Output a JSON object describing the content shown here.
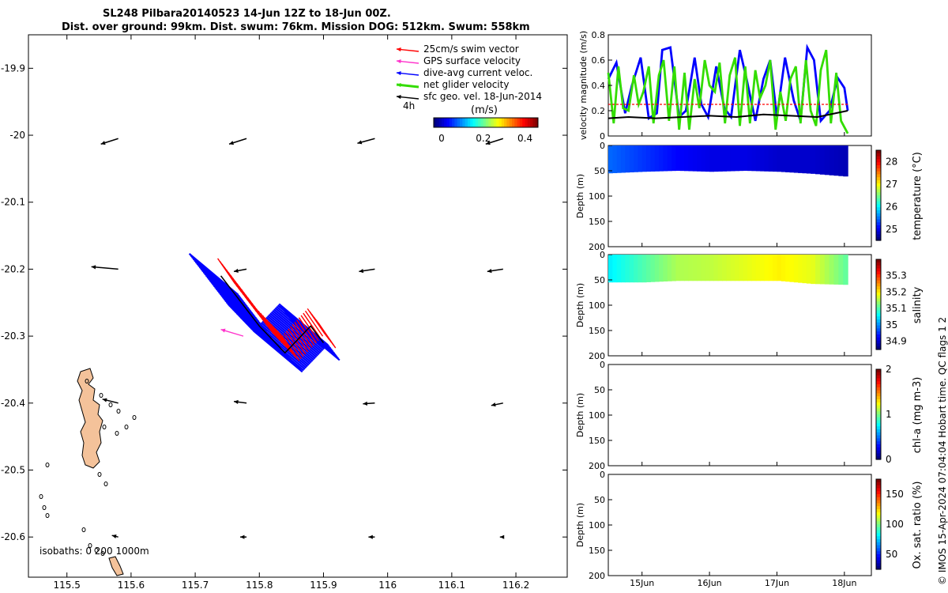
{
  "title": {
    "line1": "SL248 Pilbara20140523 14-Jun 12Z to 18-Jun 00Z.",
    "line2": "Dist. over ground: 99km. Dist. swum: 76km. Mission DOG: 512km. Swum: 558km"
  },
  "credit": "© IMOS 15-Apr-2024 07:04:04 Hobart time. QC flags 1  2",
  "colors": {
    "swim": "#ff0000",
    "gps": "#ff33cc",
    "dive_avg": "#0000ff",
    "net": "#33dd00",
    "sfc": "#000000",
    "land": "#f4c29a"
  },
  "chart_data": [
    {
      "type": "map",
      "xlim": [
        115.44,
        116.28
      ],
      "ylim": [
        -20.66,
        -19.85
      ],
      "xticks": [
        "115.5",
        "115.6",
        "115.7",
        "115.8",
        "115.9",
        "116",
        "116.1",
        "116.2"
      ],
      "yticks": [
        "-19.9",
        "-20",
        "-20.1",
        "-20.2",
        "-20.3",
        "-20.4",
        "-20.5",
        "-20.6"
      ],
      "legend": {
        "placement": "top-right",
        "items": [
          {
            "label": "25cm/s swim vector",
            "color": "#ff0000"
          },
          {
            "label": "GPS surface velocity",
            "color": "#ff33cc"
          },
          {
            "label": "dive-avg current veloc.",
            "color": "#0000ff"
          },
          {
            "label": "net glider velocity",
            "color": "#33dd00"
          },
          {
            "label": "sfc geo. vel. 18-Jun-2014",
            "color": "#000000"
          }
        ]
      },
      "time_label": "4h",
      "colorbar": {
        "label": "(m/s)",
        "ticks": [
          "0",
          "0.2",
          "0.4"
        ],
        "range": [
          0,
          0.5
        ]
      },
      "isobath_label": "isobaths: 0   200   1000m",
      "surface_vectors": [
        {
          "lon": 115.58,
          "lat": -20.005,
          "u": -0.22,
          "v": -0.07
        },
        {
          "lon": 115.78,
          "lat": -20.005,
          "u": -0.22,
          "v": -0.07
        },
        {
          "lon": 115.98,
          "lat": -20.005,
          "u": -0.22,
          "v": -0.06
        },
        {
          "lon": 116.18,
          "lat": -20.005,
          "u": -0.22,
          "v": -0.07
        },
        {
          "lon": 115.58,
          "lat": -20.2,
          "u": -0.34,
          "v": 0.03
        },
        {
          "lon": 115.78,
          "lat": -20.2,
          "u": -0.16,
          "v": -0.03
        },
        {
          "lon": 115.98,
          "lat": -20.2,
          "u": -0.2,
          "v": -0.03
        },
        {
          "lon": 116.18,
          "lat": -20.2,
          "u": -0.2,
          "v": -0.03
        },
        {
          "lon": 115.58,
          "lat": -20.4,
          "u": -0.2,
          "v": 0.05
        },
        {
          "lon": 115.78,
          "lat": -20.4,
          "u": -0.16,
          "v": 0.02
        },
        {
          "lon": 115.98,
          "lat": -20.4,
          "u": -0.15,
          "v": -0.01
        },
        {
          "lon": 116.18,
          "lat": -20.4,
          "u": -0.15,
          "v": -0.03
        },
        {
          "lon": 115.58,
          "lat": -20.6,
          "u": -0.08,
          "v": 0.02
        },
        {
          "lon": 115.78,
          "lat": -20.6,
          "u": -0.08,
          "v": 0.0
        },
        {
          "lon": 115.98,
          "lat": -20.6,
          "u": -0.08,
          "v": 0.0
        },
        {
          "lon": 116.18,
          "lat": -20.6,
          "u": -0.04,
          "v": 0.0
        }
      ],
      "glider_track": [
        {
          "lon": 115.74,
          "lat": -20.21
        },
        {
          "lon": 115.76,
          "lat": -20.235
        },
        {
          "lon": 115.78,
          "lat": -20.26
        },
        {
          "lon": 115.8,
          "lat": -20.285
        },
        {
          "lon": 115.82,
          "lat": -20.305
        },
        {
          "lon": 115.84,
          "lat": -20.325
        },
        {
          "lon": 115.86,
          "lat": -20.305
        },
        {
          "lon": 115.88,
          "lat": -20.285
        },
        {
          "lon": 115.9,
          "lat": -20.31
        }
      ]
    },
    {
      "type": "line",
      "ylabel": "velocity magnitude (m/s)",
      "ylim": [
        0,
        0.8
      ],
      "yticks": [
        "0",
        "0.2",
        "0.4",
        "0.6",
        "0.8"
      ],
      "xlim": [
        14.5,
        18.4
      ],
      "series": [
        {
          "color": "#0000ff",
          "x": [
            14.5,
            14.62,
            14.75,
            14.85,
            14.98,
            15.1,
            15.22,
            15.3,
            15.42,
            15.55,
            15.65,
            15.78,
            15.88,
            15.98,
            16.1,
            16.22,
            16.32,
            16.45,
            16.55,
            16.68,
            16.8,
            16.9,
            17.0,
            17.12,
            17.25,
            17.35,
            17.45,
            17.55,
            17.65,
            17.78,
            17.9,
            18.0,
            18.05
          ],
          "y": [
            0.45,
            0.58,
            0.18,
            0.4,
            0.62,
            0.14,
            0.18,
            0.68,
            0.7,
            0.15,
            0.2,
            0.62,
            0.25,
            0.15,
            0.55,
            0.22,
            0.15,
            0.68,
            0.45,
            0.12,
            0.45,
            0.6,
            0.15,
            0.62,
            0.28,
            0.12,
            0.7,
            0.6,
            0.12,
            0.2,
            0.46,
            0.38,
            0.2
          ]
        },
        {
          "color": "#33dd00",
          "x": [
            14.5,
            14.58,
            14.65,
            14.72,
            14.8,
            14.88,
            14.95,
            15.02,
            15.1,
            15.17,
            15.25,
            15.32,
            15.4,
            15.48,
            15.55,
            15.63,
            15.7,
            15.78,
            15.85,
            15.93,
            16.0,
            16.08,
            16.15,
            16.23,
            16.3,
            16.38,
            16.45,
            16.53,
            16.6,
            16.68,
            16.75,
            16.83,
            16.9,
            16.98,
            17.05,
            17.13,
            17.2,
            17.28,
            17.35,
            17.43,
            17.5,
            17.58,
            17.65,
            17.73,
            17.8,
            17.88,
            17.95,
            18.05
          ],
          "y": [
            0.5,
            0.1,
            0.55,
            0.22,
            0.2,
            0.48,
            0.25,
            0.35,
            0.55,
            0.1,
            0.48,
            0.6,
            0.12,
            0.55,
            0.05,
            0.5,
            0.05,
            0.45,
            0.22,
            0.6,
            0.4,
            0.35,
            0.58,
            0.1,
            0.48,
            0.62,
            0.08,
            0.55,
            0.1,
            0.52,
            0.3,
            0.4,
            0.6,
            0.05,
            0.35,
            0.12,
            0.45,
            0.55,
            0.1,
            0.6,
            0.2,
            0.08,
            0.52,
            0.68,
            0.1,
            0.5,
            0.12,
            0.02
          ]
        },
        {
          "color": "#ff0000",
          "x": [
            14.5,
            18.05
          ],
          "y": [
            0.25,
            0.25
          ]
        },
        {
          "color": "#000000",
          "x": [
            14.5,
            14.8,
            15.2,
            15.6,
            16.0,
            16.4,
            16.8,
            17.2,
            17.6,
            18.05
          ],
          "y": [
            0.14,
            0.15,
            0.14,
            0.15,
            0.16,
            0.15,
            0.17,
            0.16,
            0.15,
            0.2
          ]
        }
      ]
    },
    {
      "type": "heatmap",
      "ylabel": "Depth (m)",
      "clabel": "temperature (°C)",
      "ylim": [
        200,
        0
      ],
      "yticks": [
        "0",
        "50",
        "100",
        "150",
        "200"
      ],
      "cticks": [
        "25",
        "26",
        "27",
        "28"
      ],
      "crange": [
        24.5,
        28.5
      ],
      "x": [
        14.5,
        15.0,
        15.5,
        16.0,
        16.5,
        17.0,
        17.5,
        18.05
      ],
      "max_depth": [
        55,
        52,
        50,
        52,
        50,
        52,
        56,
        62
      ],
      "values": [
        25.4,
        25.2,
        25.0,
        24.9,
        24.9,
        24.8,
        24.8,
        24.7
      ]
    },
    {
      "type": "heatmap",
      "ylabel": "Depth (m)",
      "clabel": "salinity",
      "ylim": [
        200,
        0
      ],
      "yticks": [
        "0",
        "50",
        "100",
        "150",
        "200"
      ],
      "cticks": [
        "34.9",
        "35",
        "35.1",
        "35.2",
        "35.3"
      ],
      "crange": [
        34.85,
        35.4
      ],
      "x": [
        14.5,
        15.0,
        15.5,
        16.0,
        16.5,
        17.0,
        17.5,
        18.05
      ],
      "max_depth": [
        55,
        55,
        52,
        52,
        52,
        52,
        58,
        60
      ],
      "values": [
        35.05,
        35.1,
        35.15,
        35.16,
        35.18,
        35.2,
        35.18,
        35.1
      ]
    },
    {
      "type": "heatmap",
      "ylabel": "Depth (m)",
      "clabel": "chl-a (mg m-3)",
      "ylim": [
        200,
        0
      ],
      "yticks": [
        "0",
        "50",
        "100",
        "150",
        "200"
      ],
      "cticks": [
        "0",
        "1",
        "2"
      ],
      "crange": [
        0,
        2
      ]
    },
    {
      "type": "heatmap",
      "ylabel": "Depth (m)",
      "clabel": "Ox. sat. ratio (%)",
      "ylim": [
        200,
        0
      ],
      "yticks": [
        "0",
        "50",
        "100",
        "150",
        "200"
      ],
      "cticks": [
        "50",
        "100",
        "150"
      ],
      "crange": [
        25,
        175
      ],
      "x": [
        14.5,
        18.4
      ],
      "xticks": [
        {
          "x": 15.0,
          "label": "15Jun"
        },
        {
          "x": 16.0,
          "label": "16Jun"
        },
        {
          "x": 17.0,
          "label": "17Jun"
        },
        {
          "x": 18.0,
          "label": "18Jun"
        }
      ]
    }
  ]
}
